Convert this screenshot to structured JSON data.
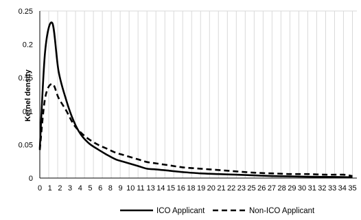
{
  "chart_data": {
    "type": "line",
    "title": "",
    "xlabel": "",
    "ylabel": "Kernel density",
    "ylim": [
      0,
      0.25
    ],
    "yticks": [
      "0",
      "0.05",
      "0.1",
      "0.15",
      "0.2",
      "0.25"
    ],
    "yticks_values": [
      0,
      0.05,
      0.1,
      0.15,
      0.2,
      0.25
    ],
    "x": [
      0,
      1,
      2,
      3,
      4,
      5,
      6,
      7,
      8,
      9,
      10,
      11,
      12,
      13,
      14,
      15,
      16,
      17,
      18,
      19,
      20,
      21,
      22,
      23,
      24,
      25,
      26,
      27,
      28,
      29,
      30,
      31,
      32,
      33,
      34,
      35
    ],
    "xtick_labels": [
      "0",
      "1",
      "2",
      "3",
      "4",
      "5",
      "6",
      "8",
      "9",
      "10",
      "11",
      "13",
      "14",
      "15",
      "16",
      "18",
      "19",
      "20",
      "21",
      "22",
      "23",
      "25",
      "26",
      "27",
      "28",
      "29",
      "30",
      "31",
      "32",
      "33",
      "34",
      "35"
    ],
    "grid": "vertical",
    "legend_position": "bottom",
    "series": [
      {
        "name": "ICO Applicant",
        "style": "solid",
        "color": "#000000",
        "points": [
          [
            0,
            0.044
          ],
          [
            0.6,
            0.19
          ],
          [
            1.4,
            0.232
          ],
          [
            2.1,
            0.16
          ],
          [
            3,
            0.115
          ],
          [
            3.8,
            0.085
          ],
          [
            4.6,
            0.065
          ],
          [
            5.5,
            0.052
          ],
          [
            6.5,
            0.043
          ],
          [
            7.5,
            0.035
          ],
          [
            8.5,
            0.028
          ],
          [
            9.5,
            0.024
          ],
          [
            11,
            0.018
          ],
          [
            12,
            0.014
          ],
          [
            13,
            0.013
          ],
          [
            14.5,
            0.011
          ],
          [
            16,
            0.009
          ],
          [
            18,
            0.007
          ],
          [
            20,
            0.006
          ],
          [
            22,
            0.005
          ],
          [
            24,
            0.004
          ],
          [
            26,
            0.003
          ],
          [
            28,
            0.0025
          ],
          [
            30,
            0.002
          ],
          [
            32,
            0.0018
          ],
          [
            34,
            0.0015
          ],
          [
            35,
            0.001
          ]
        ]
      },
      {
        "name": "Non-ICO Applicant",
        "style": "dashed",
        "color": "#000000",
        "points": [
          [
            0,
            0.042
          ],
          [
            0.6,
            0.12
          ],
          [
            1.4,
            0.141
          ],
          [
            2.1,
            0.12
          ],
          [
            3,
            0.1
          ],
          [
            3.8,
            0.08
          ],
          [
            4.6,
            0.068
          ],
          [
            5.5,
            0.058
          ],
          [
            6.5,
            0.05
          ],
          [
            7.5,
            0.044
          ],
          [
            8.5,
            0.038
          ],
          [
            9.5,
            0.034
          ],
          [
            11,
            0.028
          ],
          [
            12,
            0.024
          ],
          [
            13,
            0.022
          ],
          [
            14.5,
            0.019
          ],
          [
            16,
            0.016
          ],
          [
            18,
            0.014
          ],
          [
            20,
            0.012
          ],
          [
            22,
            0.01
          ],
          [
            24,
            0.008
          ],
          [
            26,
            0.007
          ],
          [
            28,
            0.006
          ],
          [
            30,
            0.006
          ],
          [
            32,
            0.005
          ],
          [
            34,
            0.005
          ],
          [
            35,
            0.003
          ]
        ]
      }
    ]
  }
}
